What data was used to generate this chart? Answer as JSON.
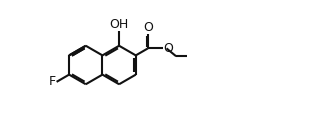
{
  "bg_color": "#ffffff",
  "bond_color": "#111111",
  "bond_lw": 1.5,
  "text_color": "#111111",
  "font_size": 9,
  "fig_width": 3.23,
  "fig_height": 1.37,
  "dpi": 100,
  "xlim": [
    -2.2,
    3.6
  ],
  "ylim": [
    -1.6,
    1.5
  ]
}
